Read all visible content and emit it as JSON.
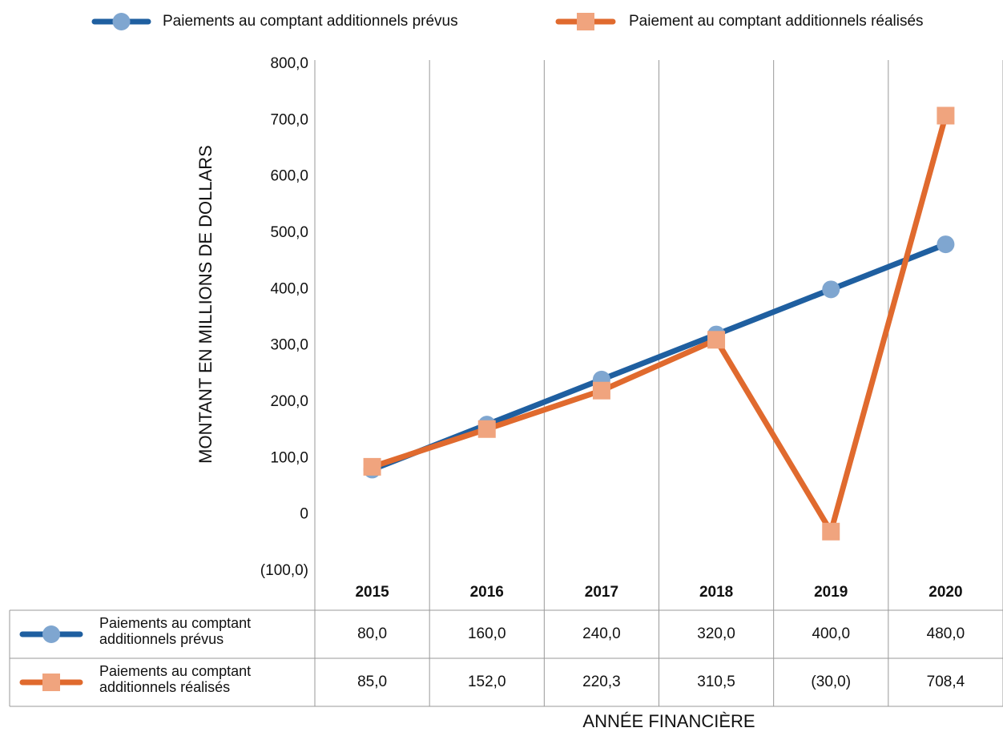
{
  "chart_data": {
    "type": "line",
    "x_label": "ANNÉE FINANCIÈRE",
    "y_label": "MONTANT EN MILLIONS DE DOLLARS",
    "categories": [
      "2015",
      "2016",
      "2017",
      "2018",
      "2019",
      "2020"
    ],
    "series": [
      {
        "name": "Paiements au comptant additionnels prévus",
        "color": "#1f5fa0",
        "marker": "circle",
        "marker_color": "#7fa6d0",
        "values": [
          80,
          160,
          240,
          320,
          400,
          480
        ],
        "value_labels": [
          "80,0",
          "160,0",
          "240,0",
          "320,0",
          "400,0",
          "480,0"
        ]
      },
      {
        "name": "Paiement au comptant additionnels réalisés",
        "color": "#e06a2e",
        "marker": "square",
        "marker_color": "#f0a47e",
        "values": [
          85,
          152,
          220.3,
          310.5,
          -30,
          708.4
        ],
        "value_labels": [
          "85,0",
          "152,0",
          "220,3",
          "310,5",
          "(30,0)",
          "708,4"
        ]
      }
    ],
    "table_row_labels": [
      "Paiements au comptant additionnels prévus",
      "Paiements au comptant additionnels réalisés"
    ],
    "ylim": [
      -100,
      800
    ],
    "yticks": [
      {
        "value": -100,
        "label": "(100,0)"
      },
      0,
      {
        "value": 100,
        "label": "100,0"
      },
      {
        "value": 200,
        "label": "200,0"
      },
      {
        "value": 300,
        "label": "300,0"
      },
      {
        "value": 400,
        "label": "400,0"
      },
      {
        "value": 500,
        "label": "500,0"
      },
      {
        "value": 600,
        "label": "600,0"
      },
      {
        "value": 700,
        "label": "700,0"
      },
      {
        "value": 800,
        "label": "800,0"
      }
    ],
    "grid": "vertical",
    "legend": "top"
  }
}
